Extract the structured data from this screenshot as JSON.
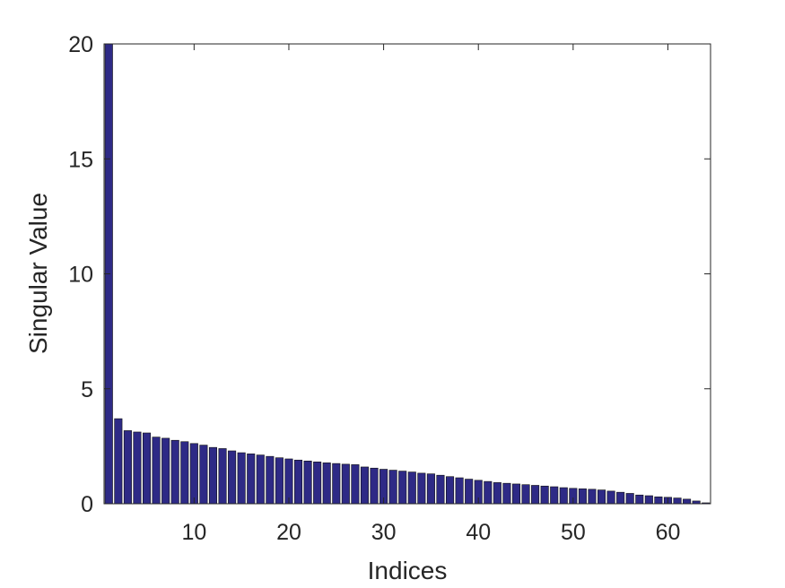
{
  "chart_data": {
    "type": "bar",
    "xlabel": "Indices",
    "ylabel": "Singular Value",
    "xlim": [
      0.5,
      64.5
    ],
    "ylim": [
      0,
      20
    ],
    "xticks": [
      10,
      20,
      30,
      40,
      50,
      60
    ],
    "yticks": [
      0,
      5,
      10,
      15,
      20
    ],
    "grid": false,
    "bar_color": "#2e2a86",
    "edge_color": "#111111",
    "x": [
      1,
      2,
      3,
      4,
      5,
      6,
      7,
      8,
      9,
      10,
      11,
      12,
      13,
      14,
      15,
      16,
      17,
      18,
      19,
      20,
      21,
      22,
      23,
      24,
      25,
      26,
      27,
      28,
      29,
      30,
      31,
      32,
      33,
      34,
      35,
      36,
      37,
      38,
      39,
      40,
      41,
      42,
      43,
      44,
      45,
      46,
      47,
      48,
      49,
      50,
      51,
      52,
      53,
      54,
      55,
      56,
      57,
      58,
      59,
      60,
      61,
      62,
      63,
      64
    ],
    "values": [
      20.0,
      3.7,
      3.18,
      3.12,
      3.08,
      2.9,
      2.85,
      2.76,
      2.7,
      2.62,
      2.55,
      2.45,
      2.4,
      2.3,
      2.22,
      2.17,
      2.12,
      2.06,
      2.0,
      1.95,
      1.9,
      1.86,
      1.82,
      1.78,
      1.75,
      1.72,
      1.7,
      1.6,
      1.55,
      1.5,
      1.46,
      1.42,
      1.38,
      1.33,
      1.3,
      1.24,
      1.18,
      1.13,
      1.07,
      1.02,
      0.97,
      0.92,
      0.89,
      0.86,
      0.83,
      0.8,
      0.77,
      0.74,
      0.7,
      0.67,
      0.65,
      0.63,
      0.6,
      0.55,
      0.5,
      0.45,
      0.38,
      0.35,
      0.3,
      0.28,
      0.25,
      0.2,
      0.12,
      0.04
    ]
  }
}
